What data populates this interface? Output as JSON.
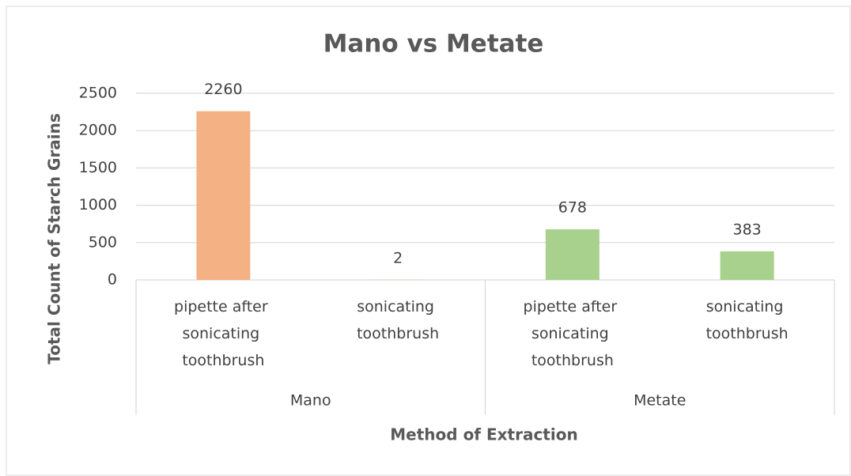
{
  "chart_data": {
    "type": "bar",
    "title": "Mano vs Metate",
    "ylabel": "Total Count of Starch Grains",
    "xlabel": "Method of Extraction",
    "groups": [
      {
        "name": "Mano",
        "color": "#f4b183",
        "categories": [
          "pipette after sonicating toothbrush",
          "sonicating toothbrush"
        ],
        "values": [
          2260,
          2
        ]
      },
      {
        "name": "Metate",
        "color": "#a9d18e",
        "categories": [
          "pipette after sonicating toothbrush",
          "sonicating toothbrush"
        ],
        "values": [
          678,
          383
        ]
      }
    ],
    "ylim": [
      0,
      2500
    ],
    "yticks": [
      0,
      500,
      1000,
      1500,
      2000,
      2500
    ],
    "grid": true
  }
}
